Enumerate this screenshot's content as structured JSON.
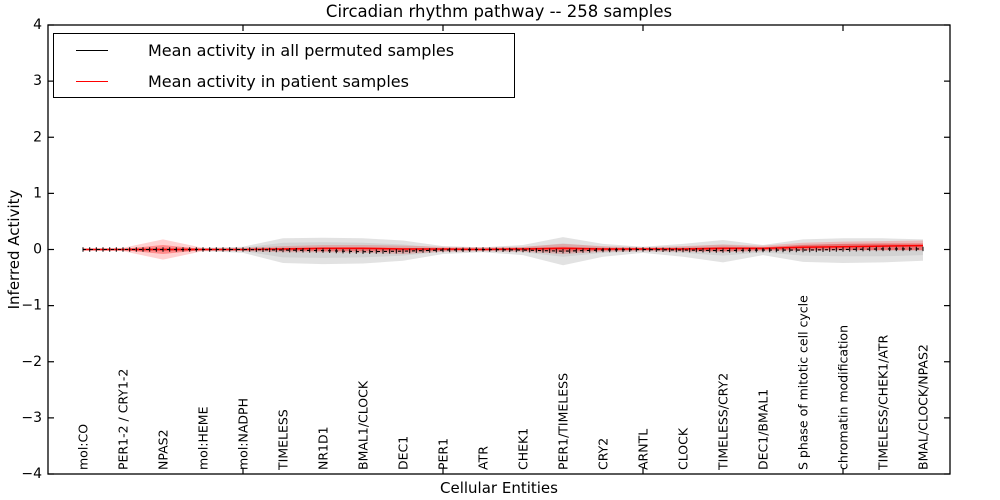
{
  "figure": {
    "title": "Circadian rhythm pathway -- 258 samples",
    "xlabel": "Cellular Entities",
    "ylabel": "Inferred Activity"
  },
  "chart_data": {
    "type": "line",
    "title": "Circadian rhythm pathway -- 258 samples",
    "xlabel": "Cellular Entities",
    "ylabel": "Inferred Activity",
    "ylim": [
      -4,
      4
    ],
    "ytick_values": [
      4,
      3,
      2,
      1,
      0,
      -1,
      -2,
      -3,
      -4
    ],
    "ytick_labels": [
      "4",
      "3",
      "2",
      "1",
      "0",
      "−1",
      "−2",
      "−3",
      "−4"
    ],
    "x_major_tick_indices": [
      4,
      9,
      14,
      19
    ],
    "grid": false,
    "legend_position": "upper left",
    "categories": [
      "mol:CO",
      "PER1-2 / CRY1-2",
      "NPAS2",
      "mol:HEME",
      "mol:NADPH",
      "TIMELESS",
      "NR1D1",
      "BMAL1/CLOCK",
      "DEC1",
      "PER1",
      "ATR",
      "CHEK1",
      "PER1/TIMELESS",
      "CRY2",
      "ARNTL",
      "CLOCK",
      "TIMELESS/CRY2",
      "DEC1/BMAL1",
      "S phase of mitotic cell cycle",
      "chromatin modification",
      "TIMELESS/CHEK1/ATR",
      "BMAL/CLOCK/NPAS2"
    ],
    "legend": [
      {
        "label": "Mean activity in all permuted samples",
        "color": "#000000"
      },
      {
        "label": "Mean activity in patient samples",
        "color": "#ff0000"
      }
    ],
    "series": [
      {
        "name": "Mean activity in all permuted samples",
        "color": "#000000",
        "values": [
          0,
          0,
          0,
          0,
          0,
          -0.01,
          -0.02,
          -0.04,
          -0.03,
          -0.01,
          0,
          -0.01,
          -0.03,
          -0.01,
          0,
          -0.01,
          -0.02,
          -0.01,
          -0.01,
          0,
          0.01,
          0.01
        ]
      },
      {
        "name": "Mean activity in patient samples",
        "color": "#ff0000",
        "values": [
          0,
          0,
          0,
          0,
          0,
          0.01,
          0.02,
          0.02,
          0.01,
          0.01,
          0,
          0.01,
          0.02,
          0.01,
          0.01,
          0.01,
          0.02,
          0.02,
          0.04,
          0.05,
          0.06,
          0.07
        ]
      }
    ],
    "bands": [
      {
        "name": "permuted-spread-outer",
        "color": "#8a8a8a",
        "opacity": 0.25,
        "upper": [
          0.02,
          0.02,
          0.03,
          0.03,
          0.05,
          0.2,
          0.21,
          0.2,
          0.16,
          0.06,
          0.04,
          0.08,
          0.22,
          0.1,
          0.05,
          0.1,
          0.17,
          0.08,
          0.18,
          0.2,
          0.2,
          0.18
        ],
        "lower": [
          -0.02,
          -0.02,
          -0.03,
          -0.03,
          -0.06,
          -0.24,
          -0.26,
          -0.25,
          -0.2,
          -0.08,
          -0.05,
          -0.1,
          -0.28,
          -0.13,
          -0.06,
          -0.13,
          -0.23,
          -0.1,
          -0.22,
          -0.24,
          -0.23,
          -0.2
        ]
      },
      {
        "name": "permuted-spread-inner",
        "color": "#8a8a8a",
        "opacity": 0.18,
        "upper": [
          0.01,
          0.01,
          0.02,
          0.02,
          0.03,
          0.12,
          0.13,
          0.12,
          0.09,
          0.03,
          0.02,
          0.04,
          0.11,
          0.05,
          0.03,
          0.05,
          0.09,
          0.04,
          0.09,
          0.1,
          0.1,
          0.09
        ],
        "lower": [
          -0.01,
          -0.01,
          -0.02,
          -0.02,
          -0.03,
          -0.14,
          -0.15,
          -0.14,
          -0.11,
          -0.04,
          -0.03,
          -0.05,
          -0.13,
          -0.06,
          -0.03,
          -0.06,
          -0.11,
          -0.05,
          -0.11,
          -0.12,
          -0.12,
          -0.1
        ]
      },
      {
        "name": "patient-spread-outer",
        "color": "#ff0000",
        "opacity": 0.18,
        "upper": [
          0.02,
          0.03,
          0.18,
          0.03,
          0.03,
          0.06,
          0.08,
          0.08,
          0.07,
          0.05,
          0.04,
          0.05,
          0.1,
          0.06,
          0.04,
          0.06,
          0.09,
          0.07,
          0.12,
          0.14,
          0.15,
          0.16
        ],
        "lower": [
          -0.02,
          -0.03,
          -0.18,
          -0.03,
          -0.03,
          -0.05,
          -0.05,
          -0.06,
          -0.08,
          -0.04,
          -0.03,
          -0.04,
          -0.08,
          -0.04,
          -0.03,
          -0.04,
          -0.05,
          -0.03,
          -0.03,
          -0.02,
          -0.02,
          -0.02
        ]
      },
      {
        "name": "patient-spread-inner",
        "color": "#ff0000",
        "opacity": 0.32,
        "upper": [
          0.01,
          0.01,
          0.08,
          0.01,
          0.01,
          0.03,
          0.04,
          0.04,
          0.03,
          0.02,
          0.02,
          0.03,
          0.05,
          0.03,
          0.02,
          0.03,
          0.05,
          0.04,
          0.08,
          0.1,
          0.11,
          0.11
        ],
        "lower": [
          -0.01,
          -0.01,
          -0.08,
          -0.01,
          -0.01,
          -0.02,
          -0.03,
          -0.03,
          -0.04,
          -0.02,
          -0.01,
          -0.02,
          -0.04,
          -0.02,
          -0.01,
          -0.02,
          -0.03,
          -0.01,
          -0.01,
          -0.01,
          -0.01,
          -0.01
        ]
      }
    ]
  }
}
